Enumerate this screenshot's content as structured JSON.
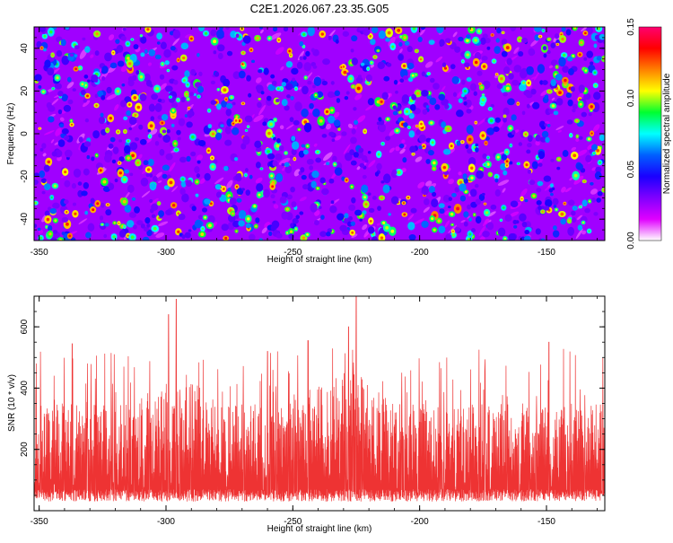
{
  "title": "C2E1.2026.067.23.35.G05",
  "chart_data": [
    {
      "type": "heatmap",
      "xlabel": "Height of straight line (km)",
      "ylabel": "Frequency (Hz)",
      "xlim": [
        -352,
        -127
      ],
      "ylim": [
        -50,
        50
      ],
      "x_ticks": [
        "-350",
        "-300",
        "-250",
        "-200",
        "-150"
      ],
      "x_tick_values": [
        -350,
        -300,
        -250,
        -200,
        -150
      ],
      "y_ticks": [
        "-40",
        "-20",
        "0",
        "20",
        "40"
      ],
      "y_tick_values": [
        -40,
        -20,
        0,
        20,
        40
      ],
      "colorbar": {
        "label": "Normalized spectral amplitude",
        "range": [
          0,
          0.15
        ],
        "ticks": [
          "0.00",
          "0.05",
          "0.10",
          "0.15"
        ],
        "tick_values": [
          0,
          0.05,
          0.1,
          0.15
        ],
        "colors": [
          "#ffffff",
          "#e000ff",
          "#8000ff",
          "#1a00ff",
          "#0060ff",
          "#00ffff",
          "#00ff30",
          "#ffff00",
          "#ff8000",
          "#ff0000",
          "#ff0070"
        ]
      },
      "background_level": 0.025,
      "blob_level_range": [
        0.03,
        0.12
      ]
    },
    {
      "type": "line",
      "xlabel": "Height of straight line (km)",
      "ylabel": "SNR (10 * v/v)",
      "xlim": [
        -352,
        -127
      ],
      "ylim": [
        0,
        700
      ],
      "x_ticks": [
        "-350",
        "-300",
        "-250",
        "-200",
        "-150"
      ],
      "x_tick_values": [
        -350,
        -300,
        -250,
        -200,
        -150
      ],
      "y_ticks": [
        "200",
        "400",
        "600"
      ],
      "y_tick_values": [
        200,
        400,
        600
      ],
      "color": "#ee3333",
      "typical_range": [
        50,
        350
      ],
      "peaks": [
        {
          "x": -296,
          "y": 690
        },
        {
          "x": -299,
          "y": 640
        },
        {
          "x": -225,
          "y": 700
        },
        {
          "x": -228,
          "y": 600
        },
        {
          "x": -337,
          "y": 545
        },
        {
          "x": -149,
          "y": 550
        },
        {
          "x": -244,
          "y": 555
        },
        {
          "x": -260,
          "y": 520
        }
      ]
    }
  ]
}
